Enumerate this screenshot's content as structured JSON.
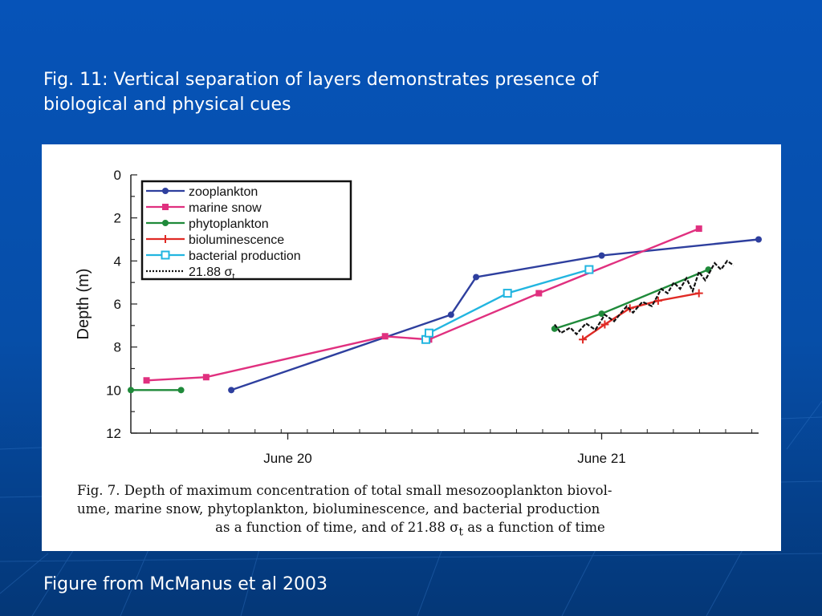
{
  "slide": {
    "title_line1": "Fig. 11: Vertical separation of layers demonstrates presence of",
    "title_line2": "biological and physical cues",
    "source": "Figure from McManus et al 2003",
    "background_color": "#0653b8"
  },
  "figure": {
    "caption_line1": "Fig. 7. Depth of maximum concentration of total small mesozooplankton biovol-",
    "caption_line2": "ume, marine snow, phytoplankton, bioluminescence, and bacterial production",
    "caption_line3": "as a function of time, and of 21.88 σ",
    "caption_sub": "t",
    "caption_line3_end": " as a function of time"
  },
  "chart_data": {
    "type": "line",
    "ylabel": "Depth (m)",
    "xlabel": "",
    "y_reversed": true,
    "ylim": [
      0,
      12
    ],
    "yticks": [
      0,
      2,
      4,
      6,
      8,
      10,
      12
    ],
    "xlim": [
      19.5,
      21.5
    ],
    "xticks": [
      {
        "value": 20,
        "label": "June 20"
      },
      {
        "value": 21,
        "label": "June 21"
      }
    ],
    "legend_position": "top-left",
    "series": [
      {
        "name": "zooplankton",
        "color": "#2e3f9e",
        "marker": "circle",
        "points": [
          [
            19.82,
            10.0
          ],
          [
            20.52,
            6.5
          ],
          [
            20.6,
            4.75
          ],
          [
            21.0,
            3.75
          ],
          [
            21.5,
            3.0
          ]
        ]
      },
      {
        "name": "marine snow",
        "color": "#e0307f",
        "marker": "square",
        "points": [
          [
            19.55,
            9.55
          ],
          [
            19.74,
            9.4
          ],
          [
            20.31,
            7.5
          ],
          [
            20.45,
            7.65
          ],
          [
            20.8,
            5.5
          ],
          [
            21.31,
            2.5
          ]
        ]
      },
      {
        "name": "phytoplankton",
        "color": "#1f8a3a",
        "marker": "circle",
        "points": [
          [
            19.5,
            10.0
          ],
          [
            19.66,
            10.0
          ]
        ],
        "points2": [
          [
            20.85,
            7.15
          ],
          [
            21.0,
            6.45
          ],
          [
            21.34,
            4.4
          ]
        ]
      },
      {
        "name": "bioluminescence",
        "color": "#e02a25",
        "marker": "plus",
        "points": [
          [
            20.94,
            7.65
          ],
          [
            21.01,
            6.95
          ],
          [
            21.09,
            6.2
          ],
          [
            21.18,
            5.85
          ],
          [
            21.31,
            5.5
          ]
        ]
      },
      {
        "name": "bacterial production",
        "color": "#22b5e0",
        "marker": "open-square",
        "points": [
          [
            20.44,
            7.65
          ],
          [
            20.45,
            7.35
          ],
          [
            20.7,
            5.5
          ],
          [
            20.96,
            4.4
          ]
        ]
      },
      {
        "name": "21.88 σt",
        "color": "#111111",
        "marker": "none",
        "dashed": true,
        "points": [
          [
            20.85,
            6.95
          ],
          [
            20.87,
            7.35
          ],
          [
            20.9,
            7.1
          ],
          [
            20.92,
            7.4
          ],
          [
            20.95,
            6.9
          ],
          [
            20.98,
            7.2
          ],
          [
            21.01,
            6.5
          ],
          [
            21.04,
            6.8
          ],
          [
            21.08,
            6.1
          ],
          [
            21.1,
            6.4
          ],
          [
            21.13,
            5.9
          ],
          [
            21.16,
            6.1
          ],
          [
            21.19,
            5.3
          ],
          [
            21.21,
            5.5
          ],
          [
            21.23,
            5.0
          ],
          [
            21.25,
            5.3
          ],
          [
            21.27,
            4.8
          ],
          [
            21.29,
            5.4
          ],
          [
            21.31,
            4.5
          ],
          [
            21.33,
            4.9
          ],
          [
            21.36,
            4.1
          ],
          [
            21.38,
            4.4
          ],
          [
            21.4,
            4.0
          ],
          [
            21.42,
            4.2
          ]
        ]
      }
    ]
  }
}
